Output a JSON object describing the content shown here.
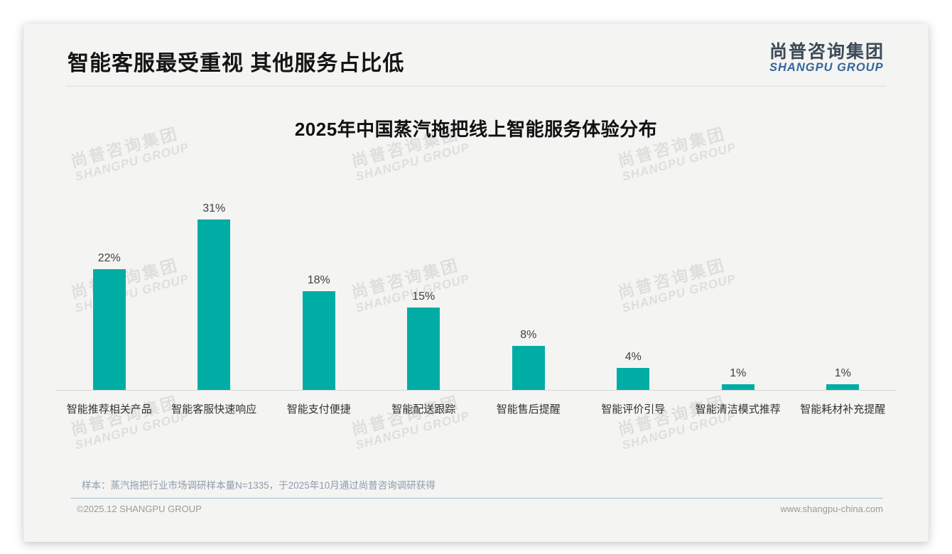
{
  "header": {
    "title": "智能客服最受重视 其他服务占比低",
    "logo_cn": "尚普咨询集团",
    "logo_en": "SHANGPU GROUP"
  },
  "chart_data": {
    "type": "bar",
    "title": "2025年中国蒸汽拖把线上智能服务体验分布",
    "categories": [
      "智能推荐相关产品",
      "智能客服快速响应",
      "智能支付便捷",
      "智能配送跟踪",
      "智能售后提醒",
      "智能评价引导",
      "智能清洁模式推荐",
      "智能耗材补充提醒"
    ],
    "values": [
      22,
      31,
      18,
      15,
      8,
      4,
      1,
      1
    ],
    "unit": "%",
    "ylim": [
      0,
      35
    ],
    "grid": false,
    "legend": "none",
    "data_labels": true,
    "bar_color": "#00ada4"
  },
  "watermark": {
    "line1": "尚普咨询集团",
    "line2": "SHANGPU GROUP"
  },
  "note": "样本：蒸汽拖把行业市场调研样本量N=1335，于2025年10月通过尚普咨询调研获得",
  "footer": {
    "copyright": "©2025.12 SHANGPU GROUP",
    "website": "www.shangpu-china.com"
  },
  "colors": {
    "bar": "#00ada4",
    "logo_blue": "#33669b",
    "logo_dark": "#3d4a57"
  }
}
